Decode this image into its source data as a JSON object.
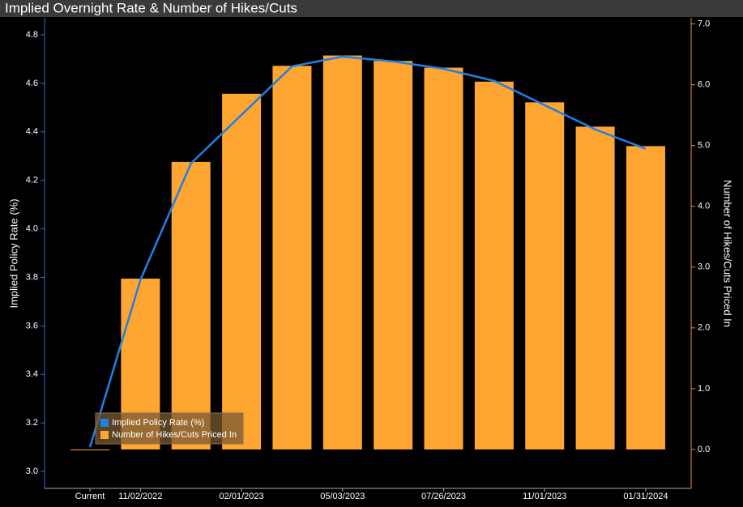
{
  "chart_data": {
    "type": "bar",
    "title": "Implied Overnight Rate & Number of Hikes/Cuts",
    "y_label": "Implied Policy Rate (%)",
    "y2_label": "Number of Hikes/Cuts Priced In",
    "categories": [
      "Current",
      "11/02/2022",
      null,
      "02/01/2023",
      null,
      "05/03/2023",
      null,
      "07/26/2023",
      null,
      "11/01/2023",
      null,
      "01/31/2024"
    ],
    "series": [
      {
        "name": "Implied Policy Rate (%)",
        "type": "line",
        "axis": "y",
        "color": "#1f80e8",
        "values": [
          3.1,
          3.79,
          4.27,
          4.47,
          4.67,
          4.71,
          4.69,
          4.66,
          4.61,
          4.51,
          4.41,
          4.33
        ]
      },
      {
        "name": "Number of Hikes/Cuts Priced In",
        "type": "bar",
        "axis": "y2",
        "color": "#ffa531",
        "values": [
          0.0,
          2.81,
          4.73,
          5.85,
          6.31,
          6.48,
          6.39,
          6.28,
          6.05,
          5.71,
          5.31,
          4.99
        ]
      }
    ],
    "ylim": [
      2.93,
      4.87
    ],
    "yticks": [
      {
        "value": 3.0,
        "label": "3.0"
      },
      {
        "value": 3.2,
        "label": "3.2"
      },
      {
        "value": 3.4,
        "label": "3.4"
      },
      {
        "value": 3.6,
        "label": "3.6"
      },
      {
        "value": 3.8,
        "label": "3.8"
      },
      {
        "value": 4.0,
        "label": "4.0"
      },
      {
        "value": 4.2,
        "label": "4.2"
      },
      {
        "value": 4.4,
        "label": "4.4"
      },
      {
        "value": 4.6,
        "label": "4.6"
      },
      {
        "value": 4.8,
        "label": "4.8"
      }
    ],
    "y2lim": [
      -0.64,
      7.1
    ],
    "y2ticks": [
      {
        "value": 0,
        "label": "0.0"
      },
      {
        "value": 1,
        "label": "1.0"
      },
      {
        "value": 2,
        "label": "2.0"
      },
      {
        "value": 3,
        "label": "3.0"
      },
      {
        "value": 4,
        "label": "4.0"
      },
      {
        "value": 5,
        "label": "5.0"
      },
      {
        "value": 6,
        "label": "6.0"
      },
      {
        "value": 7,
        "label": "7.0"
      }
    ],
    "legend": "lower left",
    "grid": false
  }
}
